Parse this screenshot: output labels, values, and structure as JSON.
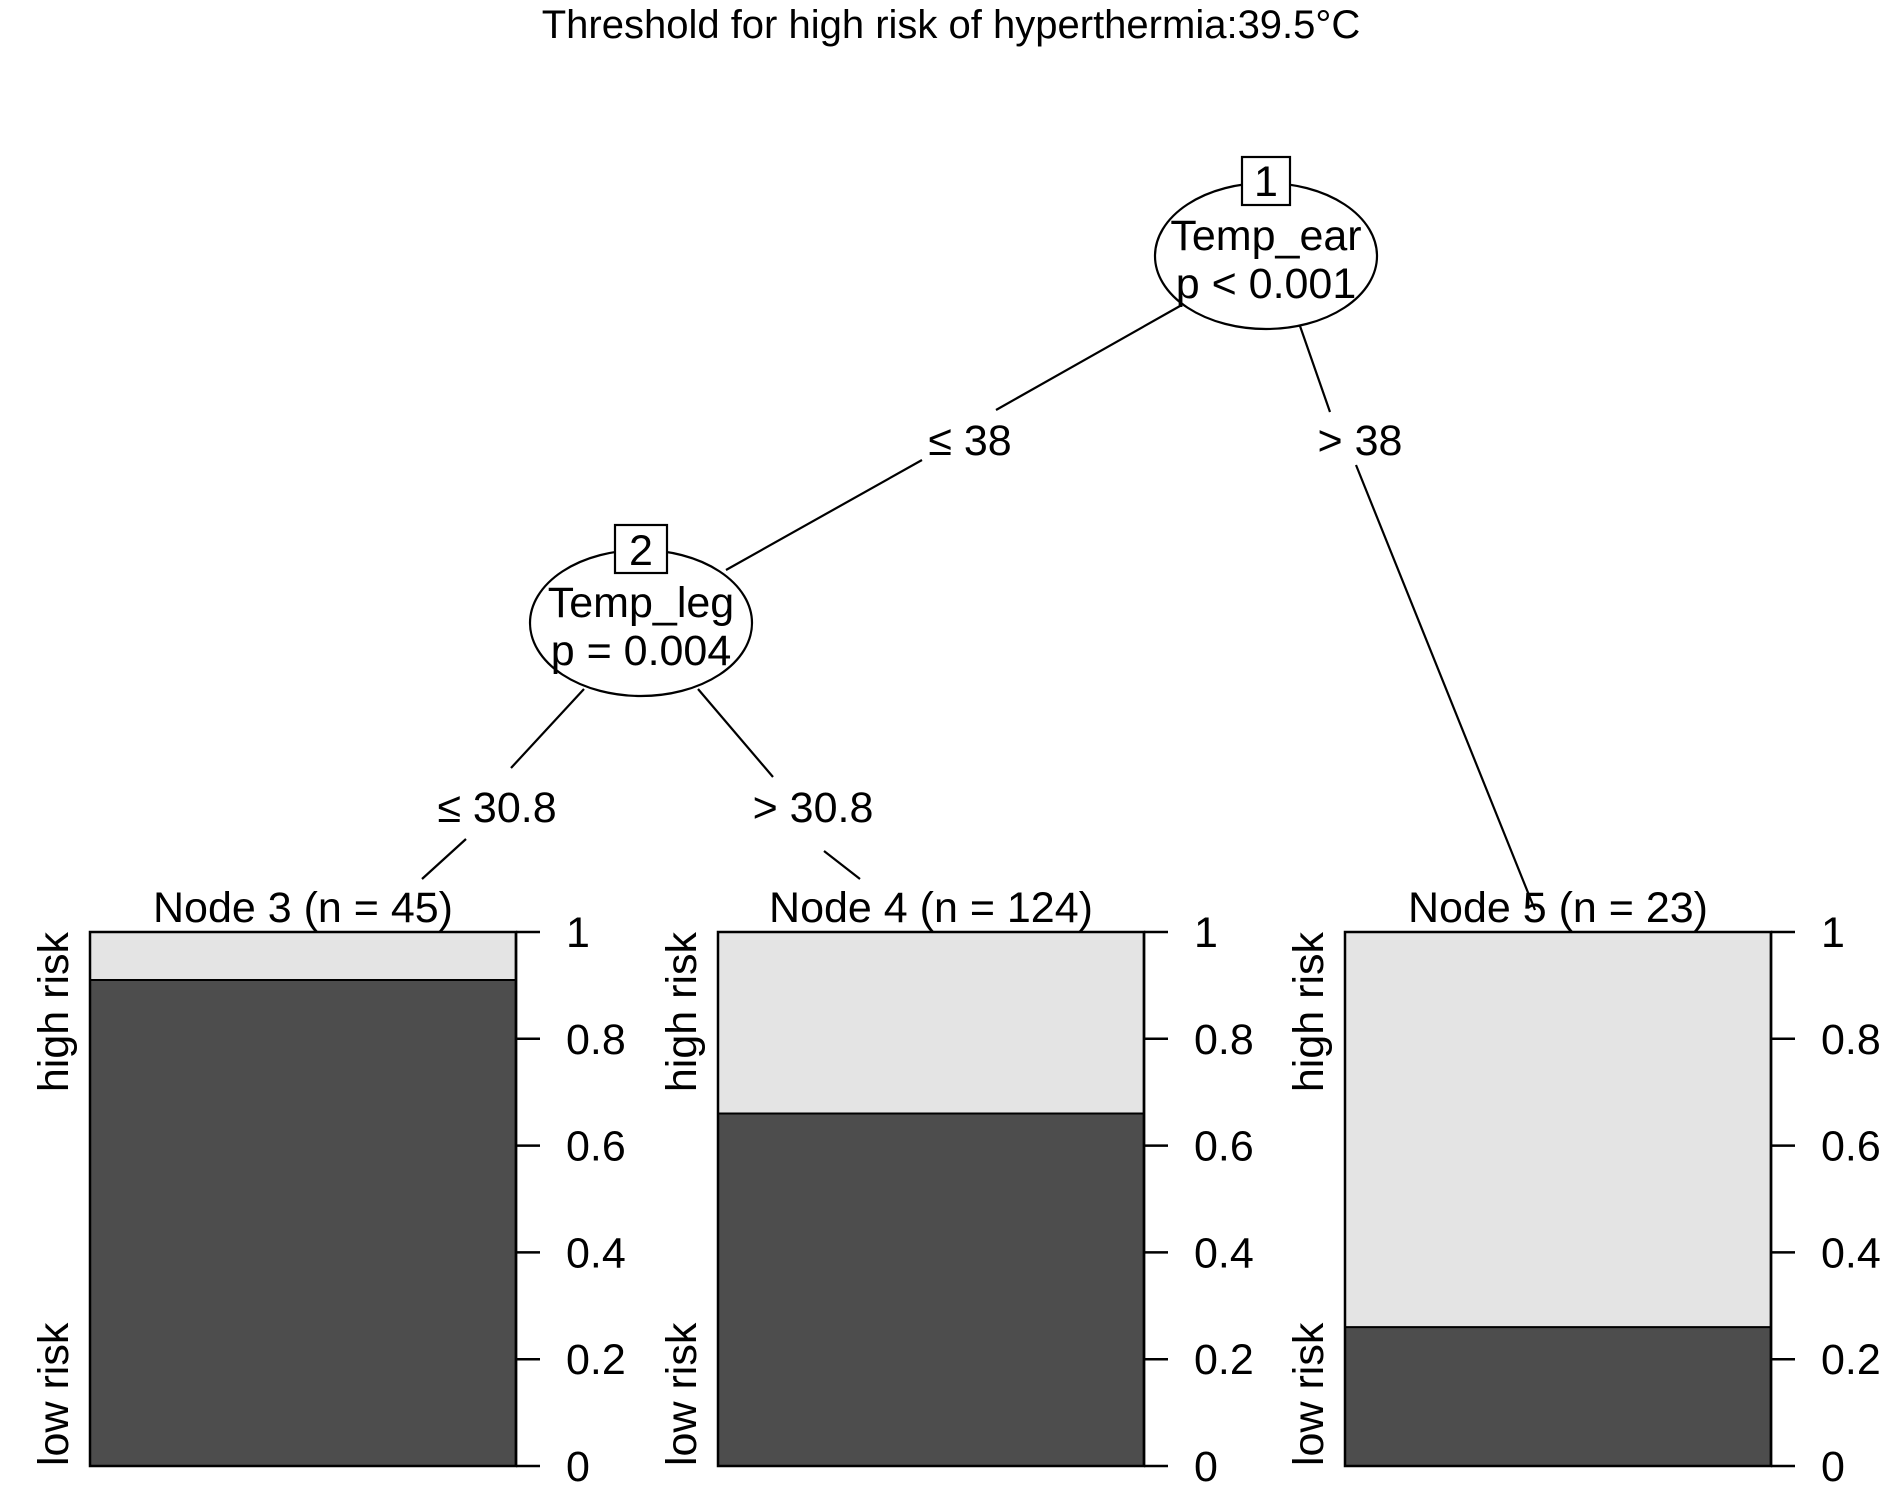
{
  "title": "Threshold for high risk of hyperthermia:39.5°C",
  "colors": {
    "high_risk": "#e4e4e4",
    "low_risk": "#4d4d4d",
    "line": "#000000"
  },
  "inner_nodes": [
    {
      "id": "1",
      "variable": "Temp_ear",
      "p": "p < 0.001"
    },
    {
      "id": "2",
      "variable": "Temp_leg",
      "p": "p = 0.004"
    }
  ],
  "edges": [
    {
      "label": "≤ 38"
    },
    {
      "label": "> 38"
    },
    {
      "label": "≤ 30.8"
    },
    {
      "label": "> 30.8"
    }
  ],
  "terminal_nodes": [
    {
      "title": "Node 3 (n = 45)",
      "high_risk_fraction": 0.09
    },
    {
      "title": "Node 4 (n = 124)",
      "high_risk_fraction": 0.34
    },
    {
      "title": "Node 5 (n = 23)",
      "high_risk_fraction": 0.74
    }
  ],
  "category_labels": {
    "high": "high risk",
    "low": "low risk"
  },
  "y_ticks": [
    "0",
    "0.2",
    "0.4",
    "0.6",
    "0.8",
    "1"
  ]
}
